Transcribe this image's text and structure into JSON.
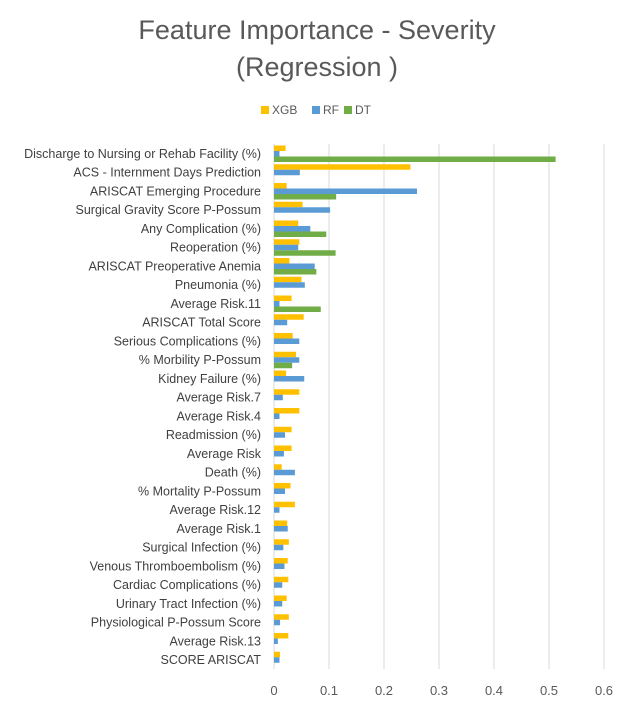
{
  "chart_data": {
    "type": "bar",
    "orientation": "horizontal",
    "title_line1": "Feature Importance - Severity",
    "title_line2": "(Regression )",
    "xlim": [
      0,
      0.6
    ],
    "xticks": [
      "0",
      "0.1",
      "0.2",
      "0.3",
      "0.4",
      "0.5",
      "0.6"
    ],
    "grid": true,
    "legend_position": "top",
    "categories": [
      "Discharge to Nursing or Rehab Facility (%)",
      "ACS - Internment Days Prediction",
      "ARISCAT Emerging Procedure",
      "Surgical Gravity Score P-Possum",
      "Any Complication (%)",
      "Reoperation (%)",
      "ARISCAT Preoperative Anemia",
      "Pneumonia (%)",
      "Average Risk.11",
      "ARISCAT Total Score",
      "Serious Complications (%)",
      "% Morbility P-Possum",
      "Kidney Failure (%)",
      "Average Risk.7",
      "Average Risk.4",
      "Readmission (%)",
      "Average Risk",
      "Death (%)",
      "% Mortality P-Possum",
      "Average Risk.12",
      "Average Risk.1",
      "Surgical Infection (%)",
      "Venous Thromboembolism (%)",
      "Cardiac Complications (%)",
      "Urinary Tract Infection (%)",
      "Physiological P-Possum Score",
      "Average Risk.13",
      "SCORE ARISCAT"
    ],
    "series": [
      {
        "name": "XGB",
        "color": "#FFC000",
        "values": [
          0.021,
          0.248,
          0.023,
          0.052,
          0.044,
          0.046,
          0.028,
          0.05,
          0.032,
          0.054,
          0.034,
          0.04,
          0.022,
          0.046,
          0.046,
          0.032,
          0.032,
          0.014,
          0.03,
          0.038,
          0.024,
          0.027,
          0.025,
          0.026,
          0.023,
          0.027,
          0.026,
          0.011
        ]
      },
      {
        "name": "RF",
        "color": "#5B9BD5",
        "values": [
          0.01,
          0.047,
          0.26,
          0.102,
          0.066,
          0.044,
          0.074,
          0.056,
          0.01,
          0.024,
          0.046,
          0.046,
          0.055,
          0.016,
          0.01,
          0.02,
          0.018,
          0.038,
          0.02,
          0.01,
          0.025,
          0.017,
          0.019,
          0.015,
          0.015,
          0.011,
          0.007,
          0.01
        ]
      },
      {
        "name": "DT",
        "color": "#70AD47",
        "values": [
          0.512,
          0.0,
          0.113,
          0.0,
          0.095,
          0.112,
          0.077,
          0.0,
          0.085,
          0.0,
          0.0,
          0.033,
          0.0,
          0.0,
          0.0,
          0.0,
          0.0,
          0.0,
          0.0,
          0.0,
          0.0,
          0.0,
          0.0,
          0.0,
          0.0,
          0.0,
          0.0,
          0.0
        ]
      }
    ]
  }
}
